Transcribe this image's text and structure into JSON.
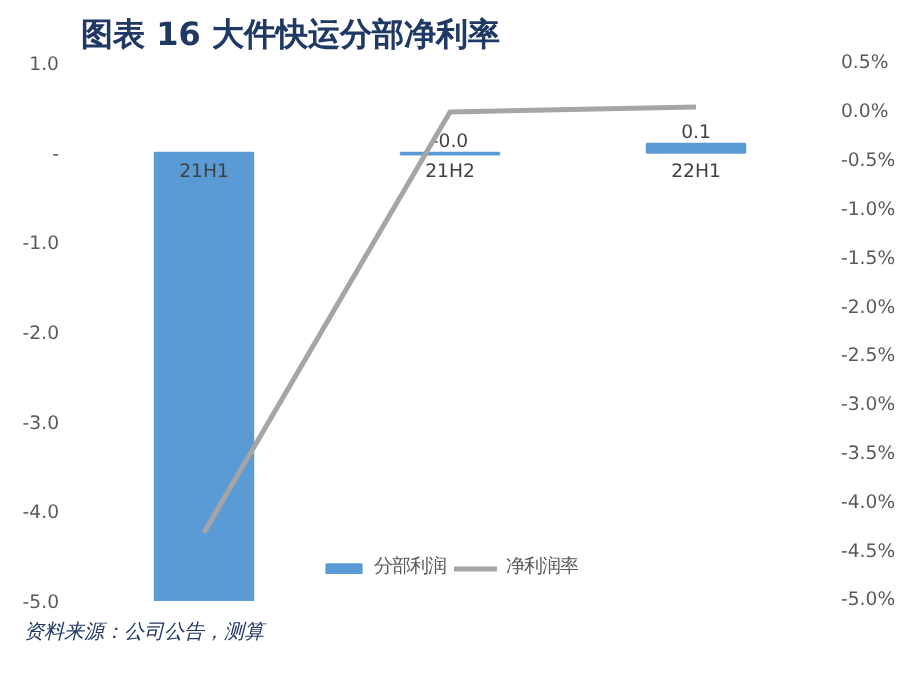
{
  "chart_data": {
    "type": "bar",
    "title": "图表 16   大件快运分部净利率",
    "categories": [
      "21H1",
      "21H2",
      "22H1"
    ],
    "series": [
      {
        "name": "分部利润",
        "color": "#5b9bd5",
        "values": [
          -5.0,
          -0.02,
          0.1
        ],
        "value_labels": [
          null,
          "-0.0",
          "0.1"
        ]
      },
      {
        "name": "净利润率",
        "type": "line",
        "axis": "y2",
        "color": "#a5a5a5",
        "values": [
          -4.3,
          0.0,
          0.05
        ]
      }
    ],
    "ylim": [
      -5.0,
      1.0
    ],
    "yticks": [
      {
        "value": 1.0,
        "label": "1.0"
      },
      {
        "value": 0,
        "label": "-"
      },
      {
        "value": -1.0,
        "label": "-1.0"
      },
      {
        "value": -2.0,
        "label": "-2.0"
      },
      {
        "value": -3.0,
        "label": "-3.0"
      },
      {
        "value": -4.0,
        "label": "-4.0"
      },
      {
        "value": -5.0,
        "label": "-5.0"
      }
    ],
    "y2lim": [
      -5.0,
      0.5
    ],
    "y2ticks": [
      {
        "value": 0.5,
        "label": "0.5%"
      },
      {
        "value": 0.0,
        "label": "0.0%"
      },
      {
        "value": -0.5,
        "label": "-0.5%"
      },
      {
        "value": -1.0,
        "label": "-1.0%"
      },
      {
        "value": -1.5,
        "label": "-1.5%"
      },
      {
        "value": -2.0,
        "label": "-2.0%"
      },
      {
        "value": -2.5,
        "label": "-2.5%"
      },
      {
        "value": -3.0,
        "label": "-3.0%"
      },
      {
        "value": -3.5,
        "label": "-3.5%"
      },
      {
        "value": -4.0,
        "label": "-4.0%"
      },
      {
        "value": -4.5,
        "label": "-4.5%"
      },
      {
        "value": -5.0,
        "label": "-5.0%"
      }
    ],
    "grid": false,
    "legend": "bottom",
    "marker": "none",
    "annotations": [
      "资料来源：公司公告，测算"
    ]
  }
}
